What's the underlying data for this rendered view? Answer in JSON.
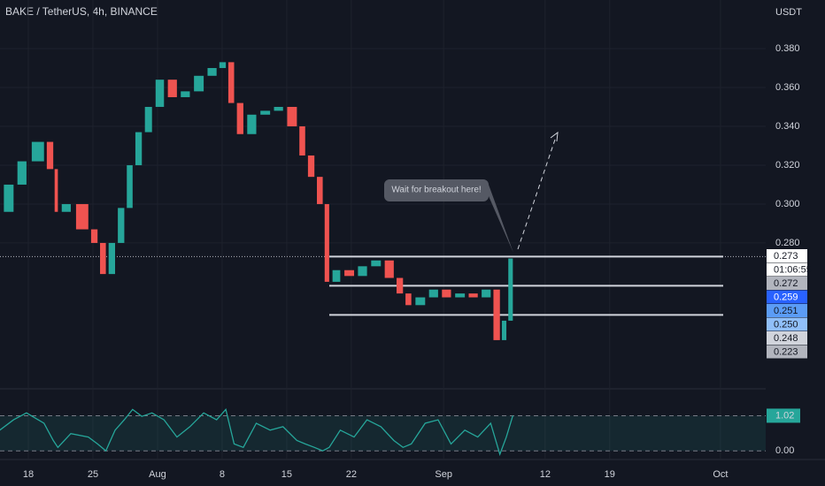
{
  "chart_data": {
    "type": "candlestick",
    "title": "BAKE / TetherUS, 4h, BINANCE",
    "y_axis_label": "USDT",
    "x": [
      -3.1,
      -1.6,
      -0.2,
      1.7,
      2.7,
      3.2,
      4.6,
      6.5,
      7.5,
      8.4,
      9.4,
      10.4,
      11.3,
      12.3,
      13.4,
      14.7,
      16.1,
      17.5,
      19.0,
      20.4,
      21.4,
      22.3,
      23.3,
      24.7,
      26.2,
      27.6,
      29.1,
      30.0,
      31.0,
      31.9,
      32.6,
      33.8,
      35.3,
      36.7,
      38.2,
      39.6,
      40.6,
      41.5,
      43.0,
      44.4,
      45.8,
      47.3,
      48.7,
      50.1,
      51.1,
      51.8,
      52.5
    ],
    "values": [
      0.296,
      0.31,
      0.322,
      0.332,
      0.318,
      0.296,
      0.3,
      0.287,
      0.28,
      0.264,
      0.28,
      0.298,
      0.32,
      0.337,
      0.35,
      0.364,
      0.355,
      0.358,
      0.366,
      0.37,
      0.373,
      0.352,
      0.336,
      0.346,
      0.348,
      0.35,
      0.34,
      0.325,
      0.314,
      0.3,
      0.26,
      0.266,
      0.263,
      0.268,
      0.271,
      0.262,
      0.254,
      0.248,
      0.252,
      0.256,
      0.252,
      0.254,
      0.252,
      0.256,
      0.23,
      0.24,
      0.272
    ],
    "up_color": "#26a69a",
    "down_color": "#ef5350",
    "xlim": [
      -3.07,
      79.9
    ],
    "xticks": [
      {
        "value": 0,
        "label": "18"
      },
      {
        "value": 7,
        "label": "25"
      },
      {
        "value": 14,
        "label": "Aug"
      },
      {
        "value": 21,
        "label": "8"
      },
      {
        "value": 28,
        "label": "15"
      },
      {
        "value": 35,
        "label": "22"
      },
      {
        "value": 45,
        "label": "Sep"
      },
      {
        "value": 56,
        "label": "12"
      },
      {
        "value": 63,
        "label": "19"
      },
      {
        "value": 75,
        "label": "Oct"
      }
    ],
    "ylim": [
      0.2095,
      0.405
    ],
    "yticks": [
      {
        "value": 0.38,
        "label": "0.380"
      },
      {
        "value": 0.36,
        "label": "0.360"
      },
      {
        "value": 0.34,
        "label": "0.340"
      },
      {
        "value": 0.32,
        "label": "0.320"
      },
      {
        "value": 0.3,
        "label": "0.300"
      },
      {
        "value": 0.28,
        "label": "0.280"
      }
    ],
    "grid": true,
    "last_price": 0.273,
    "levels": [
      0.273,
      0.258,
      0.243
    ],
    "price_badges": [
      {
        "label": "0.273",
        "color": "#ffffff",
        "text_color": "#131722"
      },
      {
        "label": "01:06:55",
        "color": "#ffffff",
        "text_color": "#131722"
      },
      {
        "label": "0.272",
        "color": "#b2b5be",
        "text_color": "#131722"
      },
      {
        "label": "0.259",
        "color": "#2962ff",
        "text_color": "#ffffff"
      },
      {
        "label": "0.251",
        "color": "#5b9cf6",
        "text_color": "#131722"
      },
      {
        "label": "0.250",
        "color": "#90bff9",
        "text_color": "#131722"
      },
      {
        "label": "0.248",
        "color": "#d1d4dc",
        "text_color": "#131722"
      },
      {
        "label": "0.223",
        "color": "#b2b5be",
        "text_color": "#131722"
      }
    ],
    "annotation": "Wait for breakout here!",
    "oscillator": {
      "color": "#26a69a",
      "ylim": [
        -0.25,
        1.8
      ],
      "yticks": [
        {
          "value": 1.02,
          "label": "1.02"
        },
        {
          "value": 0,
          "label": "0.00"
        }
      ],
      "values": [
        0.6,
        0.9,
        1.1,
        0.8,
        0.3,
        0.1,
        0.5,
        0.4,
        0.2,
        0.0,
        0.6,
        0.9,
        1.2,
        1.0,
        1.1,
        0.9,
        0.4,
        0.7,
        1.1,
        0.9,
        1.2,
        0.2,
        0.1,
        0.8,
        0.6,
        0.7,
        0.3,
        0.2,
        0.1,
        0.0,
        0.1,
        0.6,
        0.4,
        0.9,
        0.7,
        0.3,
        0.1,
        0.2,
        0.8,
        0.9,
        0.2,
        0.6,
        0.4,
        0.8,
        -0.1,
        0.4,
        1.02
      ]
    }
  }
}
